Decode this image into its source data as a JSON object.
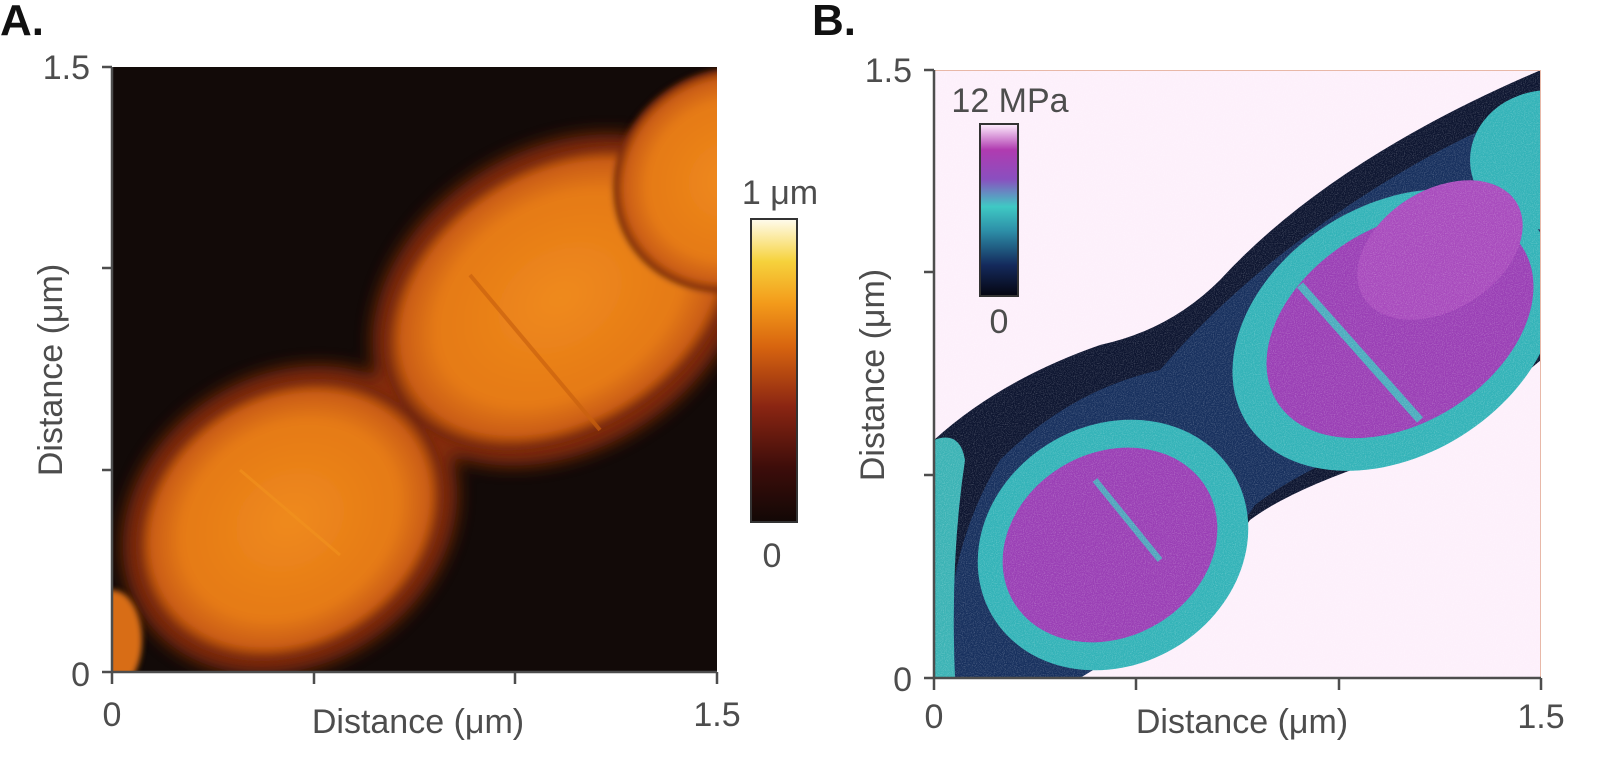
{
  "chart_data": [
    {
      "type": "heatmap",
      "panel_label": "A.",
      "quantity": "height",
      "xlabel": "Distance (μm)",
      "ylabel": "Distance (μm)",
      "xlim": [
        0,
        1.5
      ],
      "ylim": [
        0,
        1.5
      ],
      "x_ticks": [
        0,
        0.5,
        1.0,
        1.5
      ],
      "y_ticks": [
        0,
        0.5,
        1.0,
        1.5
      ],
      "x_tick_labels": [
        "0",
        "",
        "",
        "1.5"
      ],
      "y_tick_labels": [
        "0",
        "",
        "",
        "1.5"
      ],
      "colorbar": {
        "min_label": "0",
        "max_label": "1 μm",
        "colors": [
          "#120806",
          "#3d0d0a",
          "#8a2512",
          "#d8650f",
          "#f39a1a",
          "#f6d23c",
          "#fffcee"
        ]
      },
      "background_color": "#120a08",
      "object_color": "#e58019"
    },
    {
      "type": "heatmap",
      "panel_label": "B.",
      "quantity": "modulus",
      "xlabel": "Distance (μm)",
      "ylabel": "Distance (μm)",
      "xlim": [
        0,
        1.5
      ],
      "ylim": [
        0,
        1.5
      ],
      "x_ticks": [
        0,
        0.5,
        1.0,
        1.5
      ],
      "y_ticks": [
        0,
        0.5,
        1.0,
        1.5
      ],
      "x_tick_labels": [
        "0",
        "",
        "",
        "1.5"
      ],
      "y_tick_labels": [
        "0",
        "",
        "",
        "1.5"
      ],
      "colorbar": {
        "min_label": "0",
        "max_label": "12 MPa",
        "colors": [
          "#050510",
          "#142a5c",
          "#2d8fa8",
          "#3fc9c4",
          "#8a4fbf",
          "#b03bb0",
          "#fff0ff"
        ]
      },
      "background_color": "#fdf0fb",
      "frame_color": "#e8b8a8"
    }
  ]
}
